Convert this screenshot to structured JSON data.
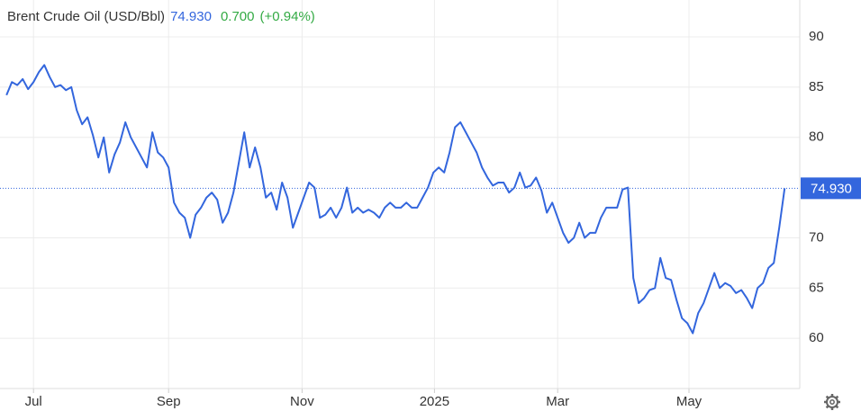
{
  "chart_data": {
    "type": "line",
    "title": "Brent Crude Oil (USD/Bbl)",
    "last_value": {
      "value": 74.93,
      "label": "74.930"
    },
    "change": "0.700",
    "change_pct": "(+0.94%)",
    "series": [
      {
        "name": "Brent Crude Oil",
        "color": "#3366dd",
        "values": [
          84.2,
          85.5,
          85.2,
          85.8,
          84.8,
          85.5,
          86.5,
          87.2,
          86.0,
          85.0,
          85.2,
          84.7,
          85.0,
          82.7,
          81.3,
          82.0,
          80.2,
          78.0,
          80.0,
          76.5,
          78.3,
          79.5,
          81.5,
          80.0,
          79.0,
          78.0,
          77.0,
          80.5,
          78.5,
          78.0,
          77.0,
          73.5,
          72.5,
          72.0,
          70.0,
          72.3,
          73.0,
          74.0,
          74.5,
          73.8,
          71.5,
          72.5,
          74.5,
          77.5,
          80.5,
          77.0,
          79.0,
          77.0,
          74.0,
          74.5,
          72.8,
          75.5,
          74.0,
          71.0,
          72.5,
          74.0,
          75.5,
          75.0,
          72.0,
          72.3,
          73.0,
          72.0,
          73.0,
          75.0,
          72.5,
          73.0,
          72.5,
          72.8,
          72.5,
          72.0,
          73.0,
          73.5,
          73.0,
          73.0,
          73.5,
          73.0,
          73.0,
          74.0,
          75.0,
          76.5,
          77.0,
          76.5,
          78.5,
          81.0,
          81.5,
          80.5,
          79.5,
          78.5,
          77.0,
          76.0,
          75.2,
          75.5,
          75.5,
          74.5,
          75.0,
          76.5,
          75.0,
          75.2,
          76.0,
          74.7,
          72.5,
          73.5,
          72.0,
          70.5,
          69.5,
          70.0,
          71.5,
          70.0,
          70.5,
          70.5,
          72.0,
          73.0,
          73.0,
          73.0,
          74.8,
          75.0,
          66.0,
          63.5,
          64.0,
          64.8,
          65.0,
          68.0,
          66.0,
          65.8,
          63.8,
          62.0,
          61.5,
          60.5,
          62.5,
          63.5,
          65.0,
          66.5,
          65.0,
          65.5,
          65.2,
          64.5,
          64.8,
          64.0,
          63.0,
          65.0,
          65.5,
          67.0,
          67.5,
          71.0,
          74.93
        ]
      }
    ],
    "xlim": [
      -1.2,
      146.8
    ],
    "xticks": [
      {
        "value": 5,
        "label": "Jul"
      },
      {
        "value": 30,
        "label": "Sep"
      },
      {
        "value": 54.7,
        "label": "Nov"
      },
      {
        "value": 79.2,
        "label": "2025"
      },
      {
        "value": 102,
        "label": "Mar"
      },
      {
        "value": 126.3,
        "label": "May"
      }
    ],
    "ylim": [
      55,
      93.67
    ],
    "yticks": [
      60,
      65,
      70,
      80,
      85,
      90
    ],
    "grid": true
  }
}
